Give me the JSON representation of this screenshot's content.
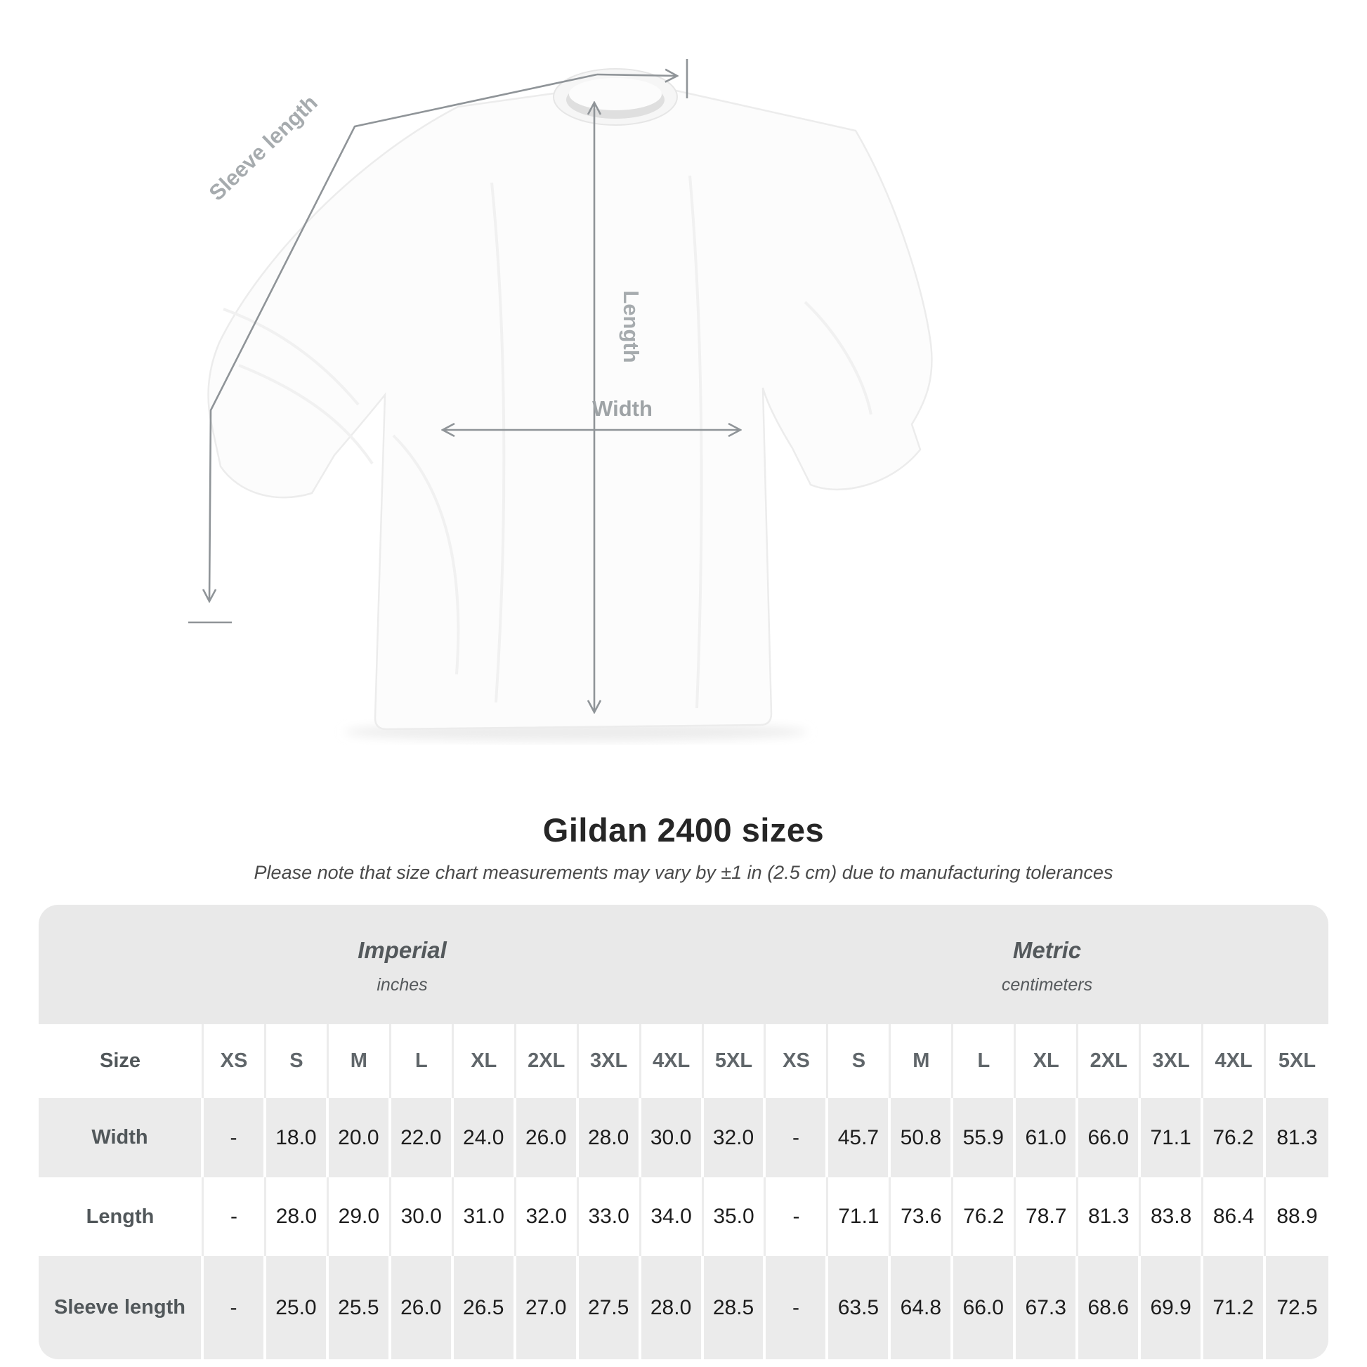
{
  "diagram": {
    "sleeve_length_label": "Sleeve length",
    "length_label": "Length",
    "width_label": "Width"
  },
  "title": "Gildan 2400 sizes",
  "subtitle": "Please note that size chart measurements may vary by ±1 in (2.5 cm) due to manufacturing tolerances",
  "table": {
    "size_column_header": "Size",
    "unit_groups": [
      {
        "name": "Imperial",
        "unit": "inches",
        "sizes": [
          "XS",
          "S",
          "M",
          "L",
          "XL",
          "2XL",
          "3XL",
          "4XL",
          "5XL"
        ]
      },
      {
        "name": "Metric",
        "unit": "centimeters",
        "sizes": [
          "XS",
          "S",
          "M",
          "L",
          "XL",
          "2XL",
          "3XL",
          "4XL",
          "5XL"
        ]
      }
    ],
    "rows": [
      {
        "label": "Width",
        "imperial": [
          "-",
          "18.0",
          "20.0",
          "22.0",
          "24.0",
          "26.0",
          "28.0",
          "30.0",
          "32.0"
        ],
        "metric": [
          "-",
          "45.7",
          "50.8",
          "55.9",
          "61.0",
          "66.0",
          "71.1",
          "76.2",
          "81.3"
        ]
      },
      {
        "label": "Length",
        "imperial": [
          "-",
          "28.0",
          "29.0",
          "30.0",
          "31.0",
          "32.0",
          "33.0",
          "34.0",
          "35.0"
        ],
        "metric": [
          "-",
          "71.1",
          "73.6",
          "76.2",
          "78.7",
          "81.3",
          "83.8",
          "86.4",
          "88.9"
        ]
      },
      {
        "label": "Sleeve length",
        "imperial": [
          "-",
          "25.0",
          "25.5",
          "26.0",
          "26.5",
          "27.0",
          "27.5",
          "28.0",
          "28.5"
        ],
        "metric": [
          "-",
          "63.5",
          "64.8",
          "66.0",
          "67.3",
          "68.6",
          "69.9",
          "71.2",
          "72.5"
        ]
      }
    ]
  },
  "colors": {
    "measurement_line": "#8f9498",
    "measurement_label": "#a6abae",
    "title_text": "#262626",
    "subtitle_text": "#4a4a4a",
    "table_band_gray": "#e9e9e9",
    "row_gray": "#ebebeb",
    "number_text": "#1d1d1d",
    "size_header_text": "#60666a"
  }
}
